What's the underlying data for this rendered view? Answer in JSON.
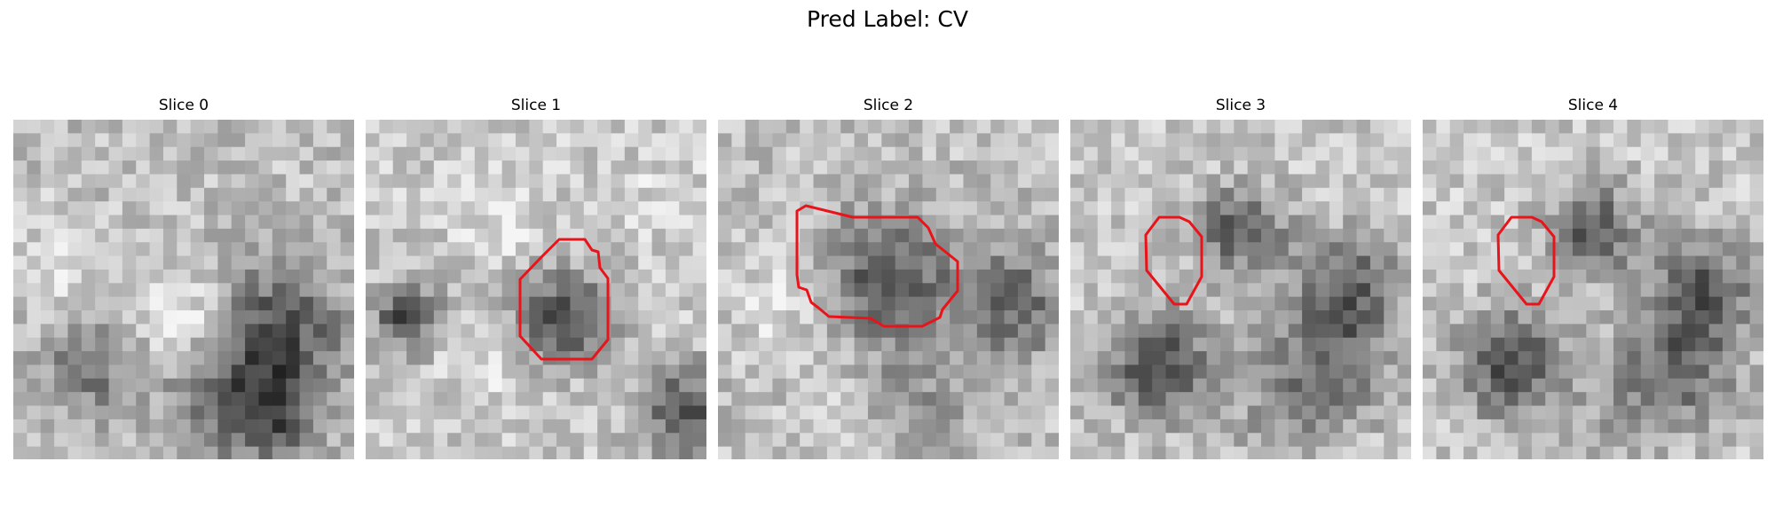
{
  "figure": {
    "title": "Pred Label: CV",
    "outline_color": "#e8141a",
    "slices": [
      {
        "title": "Slice 0",
        "has_outline": false
      },
      {
        "title": "Slice 1",
        "has_outline": true
      },
      {
        "title": "Slice 2",
        "has_outline": true
      },
      {
        "title": "Slice 3",
        "has_outline": true
      },
      {
        "title": "Slice 4",
        "has_outline": true
      }
    ]
  }
}
